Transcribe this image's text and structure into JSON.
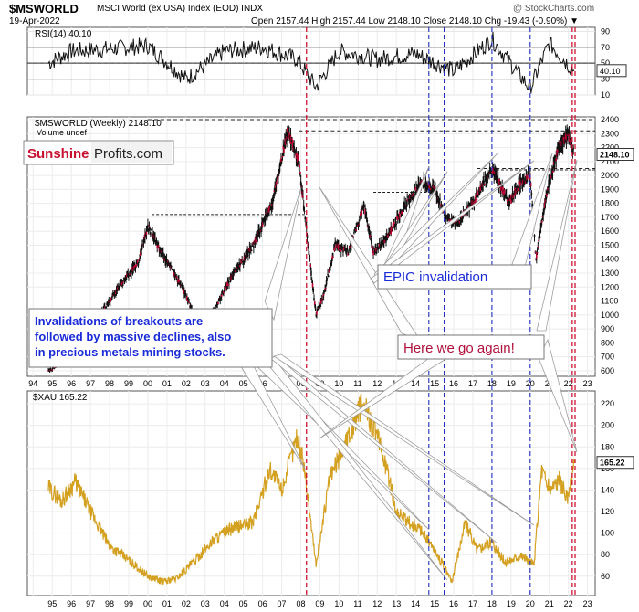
{
  "header": {
    "symbol": "$MSWORLD",
    "description": "MSCI World (ex USA) Index (EOD)  INDX",
    "date": "19-Apr-2022",
    "ohlc": "Open 2157.44  High 2157.44  Low 2148.10  Close 2148.10  Chg -19.43 (-0.90%) ▼",
    "copyright": "@ StockCharts.com"
  },
  "colors": {
    "gold": "#d4a020",
    "red_dash": "#cc0022",
    "blue_dash": "#2030c0",
    "callout_blue": "#1a2bd8",
    "callout_red": "#b0103a",
    "brand_red": "#c8102e"
  },
  "chart_data": [
    {
      "type": "line",
      "title": "RSI(14) 40.10",
      "last_value_label": "40.10",
      "ylim": [
        10,
        95
      ],
      "y_ticks": [
        "90",
        "70",
        "50",
        "30",
        "10"
      ],
      "reference_lines": [
        70,
        50,
        30
      ],
      "x": [
        1994.8,
        1996,
        1998,
        2000,
        2002,
        2004,
        2006,
        2007.8,
        2008.8,
        2010,
        2012,
        2014,
        2016,
        2018,
        2020,
        2021,
        2022.3
      ],
      "values": [
        50,
        65,
        68,
        72,
        30,
        65,
        70,
        55,
        20,
        65,
        55,
        62,
        40,
        80,
        18,
        75,
        40
      ]
    },
    {
      "type": "line",
      "title": "$MSWORLD (Weekly) 2148.10",
      "subtitle": "Volume undef",
      "last_value_label": "2148.10",
      "ylim": [
        560,
        2420
      ],
      "y_ticks": [
        "2400",
        "2300",
        "2200",
        "2100",
        "2000",
        "1900",
        "1800",
        "1700",
        "1600",
        "1500",
        "1400",
        "1300",
        "1200",
        "1100",
        "1000",
        "900",
        "800",
        "700",
        "600"
      ],
      "x_ticks": [
        "94",
        "95",
        "96",
        "97",
        "98",
        "99",
        "00",
        "01",
        "02",
        "03",
        "04",
        "05",
        "06",
        "07",
        "08",
        "09",
        "10",
        "11",
        "12",
        "13",
        "14",
        "15",
        "16",
        "17",
        "18",
        "19",
        "20",
        "21",
        "22",
        "23"
      ],
      "x": [
        1994.8,
        1995.5,
        1996.5,
        1997.5,
        1998.5,
        1999.5,
        2000.0,
        2000.7,
        2001.8,
        2002.8,
        2003.5,
        2004.5,
        2005.5,
        2006.5,
        2007.3,
        2007.9,
        2008.3,
        2008.8,
        2009.2,
        2009.8,
        2010.5,
        2011.3,
        2011.8,
        2012.5,
        2013.5,
        2014.4,
        2015.0,
        2015.6,
        2016.1,
        2017.0,
        2018.0,
        2018.9,
        2019.5,
        2020.0,
        2020.3,
        2020.9,
        2021.5,
        2022.0,
        2022.3
      ],
      "values": [
        600,
        660,
        800,
        1000,
        1200,
        1380,
        1640,
        1450,
        1200,
        870,
        1050,
        1300,
        1500,
        1800,
        2320,
        2100,
        1600,
        1000,
        1150,
        1500,
        1450,
        1790,
        1450,
        1550,
        1800,
        1960,
        1900,
        1700,
        1650,
        1800,
        2050,
        1800,
        1950,
        2000,
        1400,
        1900,
        2200,
        2300,
        2148
      ]
    },
    {
      "type": "line",
      "title": "$XAU 165.22",
      "last_value_label": "165.22",
      "ylim": [
        42,
        232
      ],
      "y_ticks": [
        "220",
        "200",
        "180",
        "160",
        "140",
        "120",
        "100",
        "80",
        "60"
      ],
      "x_ticks": [
        "95",
        "96",
        "97",
        "98",
        "99",
        "00",
        "01",
        "02",
        "03",
        "04",
        "05",
        "06",
        "07",
        "08",
        "09",
        "10",
        "11",
        "12",
        "13",
        "14",
        "15",
        "16",
        "17",
        "18",
        "19",
        "20",
        "21",
        "22",
        "23"
      ],
      "x": [
        1994.8,
        1995.5,
        1996.2,
        1997.0,
        1998.0,
        1999.0,
        2000.0,
        2000.8,
        2001.5,
        2002.5,
        2003.5,
        2004.5,
        2005.5,
        2006.4,
        2007.0,
        2007.8,
        2008.2,
        2008.8,
        2009.5,
        2010.0,
        2010.5,
        2011.2,
        2011.8,
        2012.5,
        2013.0,
        2013.6,
        2014.2,
        2014.8,
        2015.3,
        2015.9,
        2016.6,
        2017.2,
        2018.0,
        2018.7,
        2019.5,
        2020.2,
        2020.6,
        2021.0,
        2021.5,
        2022.0,
        2022.3
      ],
      "values": [
        142,
        130,
        148,
        120,
        88,
        75,
        60,
        55,
        58,
        75,
        95,
        105,
        110,
        160,
        140,
        190,
        160,
        70,
        150,
        170,
        190,
        220,
        200,
        160,
        120,
        110,
        105,
        90,
        75,
        55,
        110,
        85,
        92,
        72,
        80,
        70,
        160,
        140,
        150,
        130,
        165
      ]
    }
  ],
  "annotations": {
    "callout_left_lines": [
      "Invalidations of breakouts are",
      "followed by massive declines, also",
      "in precious metals mining stocks."
    ],
    "callout_epic": "EPIC invalidation",
    "callout_here": "Here we go again!",
    "brand_sunshine": "Sunshine",
    "brand_profits": "Profits.com"
  }
}
